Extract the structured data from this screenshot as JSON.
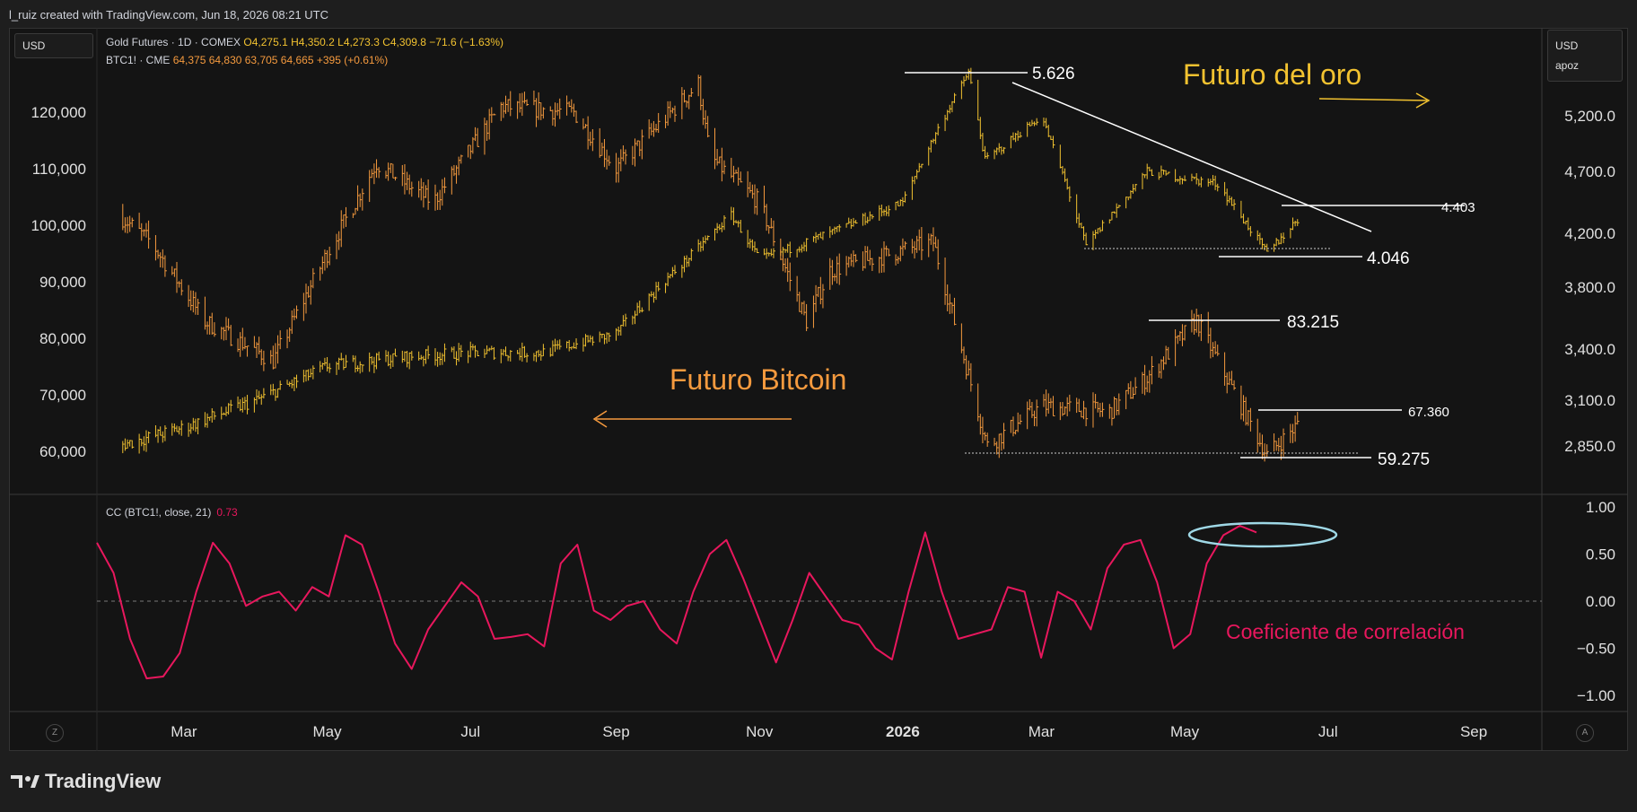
{
  "credit": "l_ruiz created with TradingView.com, Jun 18, 2026 08:21 UTC",
  "currency_left": "USD",
  "currency_right": "USD",
  "currency_right_sub": "apoz",
  "legend_gold": {
    "name": "Gold Futures · 1D · COMEX",
    "o": "O4,275.1",
    "h": "H4,350.2",
    "l": "L4,273.3",
    "c": "C4,309.8",
    "chg": "−71.6 (−1.63%)"
  },
  "legend_btc": {
    "name": "BTC1! · CME",
    "values": "64,375  64,830  63,705  64,665  +395 (+0.61%)"
  },
  "cc_legend": {
    "label": "CC (BTC1!, close, 21)",
    "value": "0.73"
  },
  "brand": "TradingView",
  "corner_left": "Z",
  "corner_right": "A",
  "colors": {
    "gold": "#f2c230",
    "bitcoin": "#f59a3e",
    "correlation": "#e8175d",
    "ellipse": "#9fd8e6",
    "annotation_line": "#ffffff"
  },
  "chart_data": [
    {
      "type": "line",
      "title": "Gold Futures · 1D · COMEX",
      "axis": "right",
      "y_ticks": [
        "5,200.0",
        "4,700.0",
        "4,200.0",
        "3,800.0",
        "3,400.0",
        "3,100.0",
        "2,850.0"
      ],
      "x_ticks": [
        "Mar",
        "May",
        "Jul",
        "Sep",
        "Nov",
        "2026",
        "Mar",
        "May",
        "Jul",
        "Sep"
      ],
      "series": [
        {
          "name": "Gold Futures",
          "x": [
            "2025-02-01",
            "2025-03-01",
            "2025-04-01",
            "2025-05-01",
            "2025-06-01",
            "2025-07-01",
            "2025-08-01",
            "2025-09-01",
            "2025-10-01",
            "2025-10-20",
            "2025-11-01",
            "2025-12-01",
            "2026-01-01",
            "2026-01-29",
            "2026-02-05",
            "2026-03-01",
            "2026-03-20",
            "2026-04-15",
            "2026-05-15",
            "2026-06-05",
            "2026-06-18"
          ],
          "values": [
            2850,
            2950,
            3100,
            3300,
            3350,
            3380,
            3380,
            3500,
            4000,
            4350,
            4000,
            4200,
            4450,
            5626,
            4800,
            5200,
            4100,
            4700,
            4600,
            4046,
            4310
          ]
        }
      ]
    },
    {
      "type": "line",
      "title": "BTC1! · CME",
      "axis": "left",
      "y_ticks": [
        "120,000",
        "110,000",
        "100,000",
        "90,000",
        "80,000",
        "70,000",
        "60,000"
      ],
      "series": [
        {
          "name": "BTC1!",
          "x": [
            "2025-02-01",
            "2025-02-15",
            "2025-03-10",
            "2025-04-08",
            "2025-05-01",
            "2025-05-22",
            "2025-06-15",
            "2025-07-14",
            "2025-08-14",
            "2025-09-01",
            "2025-10-06",
            "2025-10-11",
            "2025-11-01",
            "2025-11-21",
            "2025-12-01",
            "2026-01-14",
            "2026-02-06",
            "2026-03-01",
            "2026-03-30",
            "2026-04-15",
            "2026-05-06",
            "2026-06-05",
            "2026-06-18"
          ],
          "values": [
            102000,
            97000,
            83000,
            76000,
            95000,
            111000,
            104000,
            121000,
            120000,
            110000,
            125000,
            112000,
            104000,
            83000,
            92000,
            97000,
            61000,
            68000,
            67000,
            73000,
            83215,
            59275,
            64665
          ]
        }
      ]
    },
    {
      "type": "line",
      "title": "CC (BTC1!, close, 21)",
      "y_ticks": [
        "1.00",
        "0.50",
        "0.00",
        "−0.50",
        "−1.00"
      ],
      "ylim": [
        -1,
        1
      ],
      "series": [
        {
          "name": "CC",
          "values": [
            0.62,
            0.3,
            -0.4,
            -0.82,
            -0.8,
            -0.55,
            0.1,
            0.62,
            0.4,
            -0.05,
            0.05,
            0.1,
            -0.1,
            0.15,
            0.05,
            0.7,
            0.6,
            0.1,
            -0.45,
            -0.72,
            -0.3,
            -0.05,
            0.2,
            0.05,
            -0.4,
            -0.38,
            -0.35,
            -0.48,
            0.4,
            0.6,
            -0.1,
            -0.2,
            -0.05,
            0.0,
            -0.3,
            -0.45,
            0.1,
            0.5,
            0.65,
            0.25,
            -0.2,
            -0.65,
            -0.2,
            0.3,
            0.05,
            -0.2,
            -0.25,
            -0.5,
            -0.62,
            0.1,
            0.73,
            0.1,
            -0.4,
            -0.35,
            -0.3,
            0.15,
            0.1,
            -0.6,
            0.1,
            0.0,
            -0.3,
            0.35,
            0.6,
            0.65,
            0.2,
            -0.5,
            -0.35,
            0.4,
            0.7,
            0.8,
            0.73
          ]
        }
      ]
    }
  ],
  "annotations": {
    "gold_peak": "5.626",
    "gold_level_upper": "4.403",
    "gold_level_lower": "4.046",
    "btc_peak": "83.215",
    "btc_level_upper": "67.360",
    "btc_level_lower": "59.275",
    "label_gold": "Futuro del oro",
    "label_bitcoin": "Futuro Bitcoin",
    "label_correlation": "Coeficiente de correlación"
  }
}
